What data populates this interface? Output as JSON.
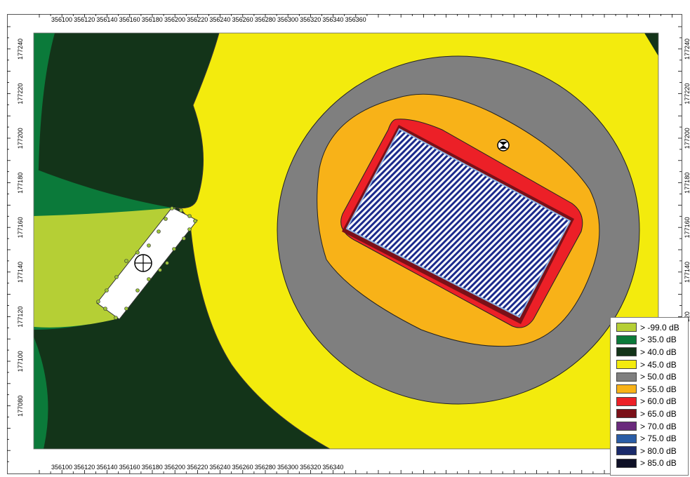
{
  "map": {
    "x_ticks": [
      "356100",
      "356120",
      "356140",
      "356160",
      "356180",
      "356200",
      "356220",
      "356240",
      "356260",
      "356280",
      "356300",
      "356320",
      "356340",
      "356360"
    ],
    "x_ticks_bottom": [
      "356100",
      "356120",
      "356140",
      "356160",
      "356180",
      "356200",
      "356220",
      "356240",
      "356260",
      "356280",
      "356300",
      "356320",
      "356340"
    ],
    "y_ticks": [
      "177240",
      "177220",
      "177200",
      "177180",
      "177160",
      "177140",
      "177120",
      "177100",
      "177080"
    ],
    "y_ticks_right": [
      "177240",
      "177220",
      "177200",
      "177180",
      "177160",
      "177140",
      "120"
    ]
  },
  "legend": {
    "items": [
      {
        "label": "> -99.0 dB",
        "color": "#b5cf35"
      },
      {
        "label": "> 35.0 dB",
        "color": "#0b7a3a"
      },
      {
        "label": "> 40.0 dB",
        "color": "#133419"
      },
      {
        "label": "> 45.0 dB",
        "color": "#f3eb0d"
      },
      {
        "label": "> 50.0 dB",
        "color": "#7f7f7f"
      },
      {
        "label": "> 55.0 dB",
        "color": "#f8b218"
      },
      {
        "label": "> 60.0 dB",
        "color": "#ec2027"
      },
      {
        "label": "> 65.0 dB",
        "color": "#7a1018"
      },
      {
        "label": "> 70.0 dB",
        "color": "#6a2a7c"
      },
      {
        "label": "> 75.0 dB",
        "color": "#2a5da6"
      },
      {
        "label": "> 80.0 dB",
        "color": "#1a2a6a"
      },
      {
        "label": "> 85.0 dB",
        "color": "#0e1026"
      }
    ]
  },
  "markers": {
    "receiver_icon": "crosshair-circle-icon",
    "source_icon": "hourglass-circle-icon"
  }
}
